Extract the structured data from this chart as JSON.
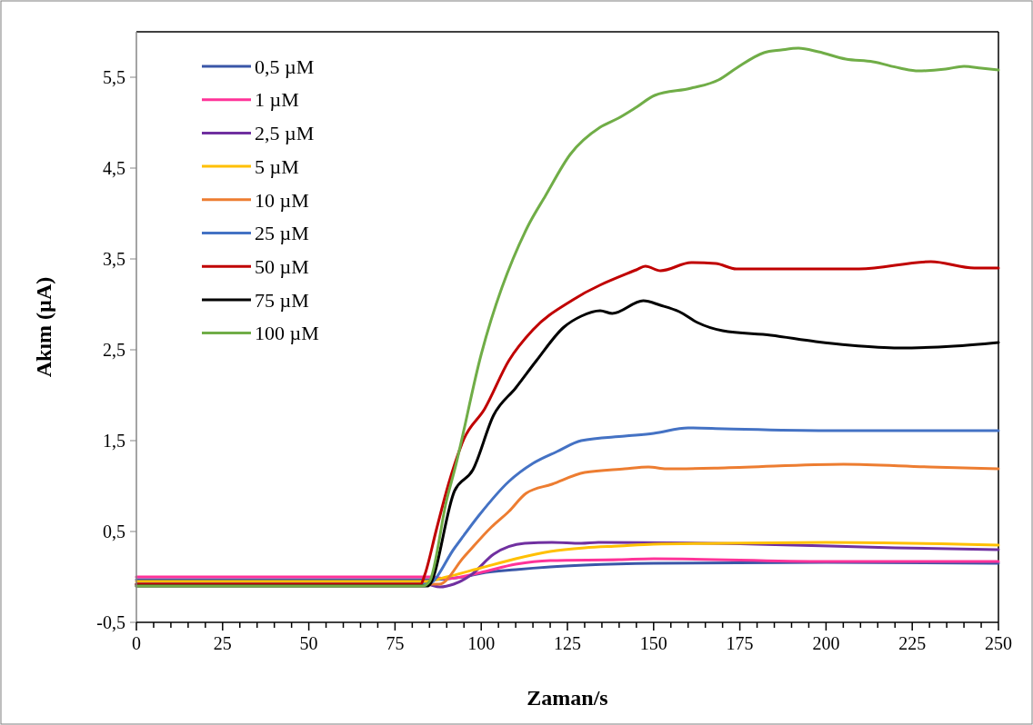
{
  "chart_data": {
    "type": "line",
    "xlabel": "Zaman/s",
    "ylabel": "Akım (µA)",
    "xlim": [
      0,
      250
    ],
    "ylim": [
      -0.5,
      6
    ],
    "xticks": [
      0,
      {
        "value": 5,
        "label": null
      },
      {
        "value": 10,
        "label": null
      },
      {
        "value": 15,
        "label": null
      },
      {
        "value": 20,
        "label": null
      },
      25,
      {
        "value": 30,
        "label": null
      },
      {
        "value": 35,
        "label": null
      },
      {
        "value": 40,
        "label": null
      },
      {
        "value": 45,
        "label": null
      },
      50,
      {
        "value": 55,
        "label": null
      },
      {
        "value": 60,
        "label": null
      },
      {
        "value": 65,
        "label": null
      },
      {
        "value": 70,
        "label": null
      },
      75,
      {
        "value": 80,
        "label": null
      },
      {
        "value": 85,
        "label": null
      },
      {
        "value": 90,
        "label": null
      },
      {
        "value": 95,
        "label": null
      },
      100,
      {
        "value": 105,
        "label": null
      },
      {
        "value": 110,
        "label": null
      },
      {
        "value": 115,
        "label": null
      },
      {
        "value": 120,
        "label": null
      },
      125,
      {
        "value": 130,
        "label": null
      },
      {
        "value": 135,
        "label": null
      },
      {
        "value": 140,
        "label": null
      },
      {
        "value": 145,
        "label": null
      },
      150,
      {
        "value": 155,
        "label": null
      },
      {
        "value": 160,
        "label": null
      },
      {
        "value": 165,
        "label": null
      },
      {
        "value": 170,
        "label": null
      },
      175,
      {
        "value": 180,
        "label": null
      },
      {
        "value": 185,
        "label": null
      },
      {
        "value": 190,
        "label": null
      },
      {
        "value": 195,
        "label": null
      },
      200,
      {
        "value": 205,
        "label": null
      },
      {
        "value": 210,
        "label": null
      },
      {
        "value": 215,
        "label": null
      },
      {
        "value": 220,
        "label": null
      },
      225,
      {
        "value": 230,
        "label": null
      },
      {
        "value": 235,
        "label": null
      },
      {
        "value": 240,
        "label": null
      },
      {
        "value": 245,
        "label": null
      },
      250
    ],
    "yticks": [
      {
        "value": -0.5,
        "label": "-0,5"
      },
      {
        "value": 0.5,
        "label": "0,5"
      },
      {
        "value": 1.5,
        "label": "1,5"
      },
      {
        "value": 2.5,
        "label": "2,5"
      },
      {
        "value": 3.5,
        "label": "3,5"
      },
      {
        "value": 4.5,
        "label": "4,5"
      },
      {
        "value": 5.5,
        "label": "5,5"
      }
    ],
    "grid": false,
    "legend": "top left",
    "marker": "none",
    "line_style": "solid",
    "series": [
      {
        "name": "0,5 µM",
        "color": "#3a56a8",
        "x": [
          0,
          85,
          95,
          100,
          110,
          120,
          130,
          150,
          200,
          250
        ],
        "values": [
          -0.03,
          -0.03,
          0,
          0.04,
          0.08,
          0.11,
          0.13,
          0.15,
          0.16,
          0.15
        ]
      },
      {
        "name": "1 µM",
        "color": "#ff3399",
        "x": [
          0,
          85,
          90,
          100,
          110,
          120,
          140,
          150,
          200,
          250
        ],
        "values": [
          0,
          0,
          -0.02,
          0.05,
          0.14,
          0.18,
          0.19,
          0.2,
          0.17,
          0.17
        ]
      },
      {
        "name": "2,5 µM",
        "color": "#7030a0",
        "x": [
          0,
          84,
          88,
          92,
          97,
          103.6,
          112.6,
          120.5,
          129,
          134,
          180,
          220,
          250
        ],
        "values": [
          -0.08,
          -0.08,
          -0.11,
          -0.08,
          0.02,
          0.25,
          0.37,
          0.38,
          0.37,
          0.38,
          0.36,
          0.32,
          0.3
        ]
      },
      {
        "name": "5 µM",
        "color": "#ffc000",
        "x": [
          0,
          84,
          90,
          100,
          110,
          120,
          130,
          140,
          150,
          170,
          200,
          250
        ],
        "values": [
          -0.05,
          -0.05,
          0,
          0.1,
          0.2,
          0.28,
          0.32,
          0.34,
          0.36,
          0.37,
          0.38,
          0.35
        ]
      },
      {
        "name": "10 µM",
        "color": "#ed7d31",
        "x": [
          0,
          84,
          87.8,
          95,
          103,
          108,
          113,
          120.5,
          130,
          141.6,
          148.5,
          153.7,
          170.6,
          205,
          230,
          250
        ],
        "values": [
          -0.08,
          -0.08,
          -0.08,
          0.22,
          0.55,
          0.72,
          0.92,
          1.02,
          1.15,
          1.19,
          1.21,
          1.19,
          1.2,
          1.24,
          1.21,
          1.19
        ]
      },
      {
        "name": "25 µM",
        "color": "#4472c4",
        "x": [
          0,
          84.4,
          92.3,
          99.4,
          108,
          115,
          122,
          129,
          141.6,
          150,
          160,
          170.6,
          200,
          250
        ],
        "values": [
          -0.08,
          -0.08,
          0.32,
          0.68,
          1.05,
          1.25,
          1.38,
          1.5,
          1.55,
          1.58,
          1.64,
          1.63,
          1.61,
          1.61
        ]
      },
      {
        "name": "50 µM",
        "color": "#c00000",
        "x": [
          0,
          82.5,
          83.6,
          87,
          90.5,
          95,
          101,
          108,
          115,
          126.6,
          145,
          147.6,
          152,
          160.9,
          168,
          174,
          191,
          209.6,
          230.4,
          243,
          250
        ],
        "values": [
          -0.08,
          -0.08,
          0.02,
          0.52,
          1.02,
          1.52,
          1.85,
          2.38,
          2.72,
          3.05,
          3.38,
          3.42,
          3.37,
          3.46,
          3.45,
          3.39,
          3.39,
          3.39,
          3.47,
          3.4,
          3.4
        ]
      },
      {
        "name": "75 µM",
        "color": "#000000",
        "x": [
          0,
          84.5,
          92.3,
          97.6,
          103.6,
          110,
          116,
          124,
          129,
          134.5,
          138,
          147,
          152,
          157.4,
          162.7,
          170,
          184,
          197,
          207,
          221,
          237,
          250
        ],
        "values": [
          -0.1,
          -0.1,
          0.95,
          1.18,
          1.78,
          2.08,
          2.38,
          2.75,
          2.87,
          2.93,
          2.9,
          3.04,
          2.99,
          2.92,
          2.8,
          2.71,
          2.66,
          2.59,
          2.55,
          2.52,
          2.54,
          2.58
        ]
      },
      {
        "name": "100 µM",
        "color": "#70ad47",
        "x": [
          0,
          83,
          85,
          90,
          92.3,
          100,
          113.4,
          118.7,
          125.8,
          134.5,
          139.8,
          145,
          150.3,
          160.9,
          168.8,
          174,
          182,
          187,
          192,
          197.8,
          205.7,
          213.6,
          221.5,
          226.8,
          234.7,
          240,
          245,
          250
        ],
        "values": [
          -0.1,
          -0.1,
          -0.05,
          0.85,
          1.18,
          2.45,
          3.85,
          4.2,
          4.65,
          4.95,
          5.05,
          5.17,
          5.3,
          5.38,
          5.47,
          5.6,
          5.77,
          5.8,
          5.82,
          5.78,
          5.7,
          5.67,
          5.6,
          5.57,
          5.59,
          5.62,
          5.6,
          5.58
        ]
      }
    ]
  }
}
